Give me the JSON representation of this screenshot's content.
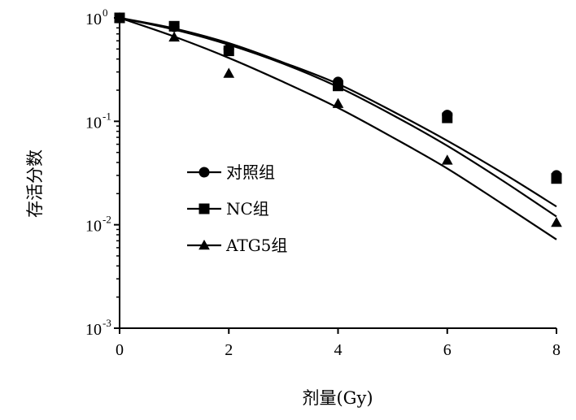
{
  "chart_data": {
    "type": "scatter",
    "xlabel": "剂量(Gy)",
    "ylabel": "存活分数",
    "xlim": [
      0,
      8
    ],
    "ylim": [
      0.001,
      1
    ],
    "y_scale": "log",
    "x_ticks": [
      "0",
      "2",
      "4",
      "6",
      "8"
    ],
    "y_ticks": [
      {
        "value": 1,
        "base": "10",
        "exp": "0"
      },
      {
        "value": 0.1,
        "base": "10",
        "exp": "-1"
      },
      {
        "value": 0.01,
        "base": "10",
        "exp": "-2"
      },
      {
        "value": 0.001,
        "base": "10",
        "exp": "-3"
      }
    ],
    "grid": false,
    "legend_position": "center-left",
    "series": [
      {
        "name": "对照组",
        "marker": "circle",
        "x": [
          0,
          1,
          2,
          4,
          6,
          8
        ],
        "y": [
          1.0,
          0.82,
          0.5,
          0.24,
          0.115,
          0.03
        ],
        "fit": {
          "x": [
            0,
            1,
            2,
            3,
            4,
            5,
            6,
            7,
            8
          ],
          "y": [
            1.0,
            0.79,
            0.57,
            0.37,
            0.23,
            0.125,
            0.065,
            0.032,
            0.015
          ]
        }
      },
      {
        "name": "NC组",
        "marker": "square",
        "x": [
          0,
          1,
          2,
          4,
          6,
          8
        ],
        "y": [
          1.0,
          0.83,
          0.48,
          0.22,
          0.108,
          0.028
        ],
        "fit": {
          "x": [
            0,
            1,
            2,
            3,
            4,
            5,
            6,
            7,
            8
          ],
          "y": [
            1.0,
            0.77,
            0.55,
            0.36,
            0.215,
            0.115,
            0.058,
            0.027,
            0.012
          ]
        }
      },
      {
        "name": "ATG5组",
        "marker": "triangle",
        "x": [
          0,
          1,
          2,
          4,
          6,
          8
        ],
        "y": [
          1.0,
          0.65,
          0.29,
          0.148,
          0.042,
          0.0105
        ],
        "fit": {
          "x": [
            0,
            1,
            2,
            3,
            4,
            5,
            6,
            7,
            8
          ],
          "y": [
            1.0,
            0.66,
            0.41,
            0.24,
            0.135,
            0.07,
            0.035,
            0.016,
            0.0072
          ]
        }
      }
    ]
  }
}
